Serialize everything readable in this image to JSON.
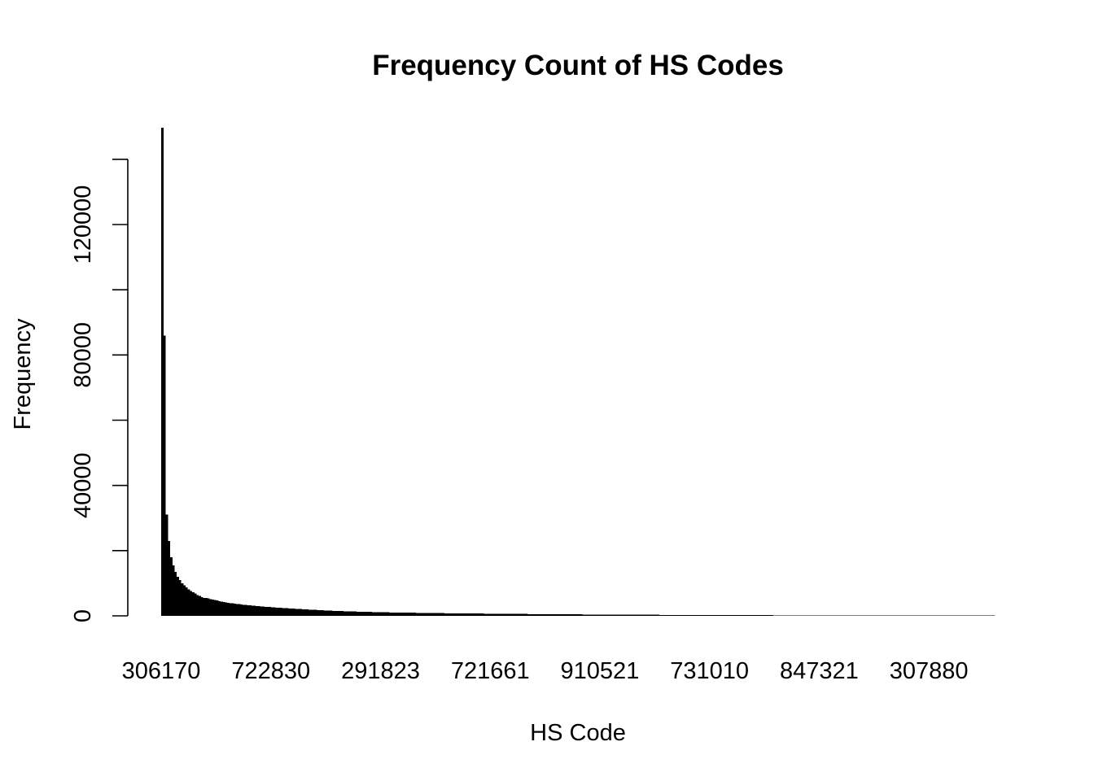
{
  "chart_data": {
    "type": "bar",
    "title": "Frequency Count of HS Codes",
    "xlabel": "HS Code",
    "ylabel": "Frequency",
    "ylim": [
      0,
      140000
    ],
    "y_ticks": [
      0,
      40000,
      80000,
      120000
    ],
    "y_minor_ticks": [
      20000,
      60000,
      100000,
      140000
    ],
    "x_tick_labels": [
      "306170",
      "722830",
      "291823",
      "721661",
      "910521",
      "731010",
      "847321",
      "307880"
    ],
    "x_tick_every": 50,
    "sort_order": "descending",
    "approx_category_count": 380,
    "grid": false,
    "bar_color": "#000000",
    "leading_values": [
      150000,
      86000,
      31000,
      23000,
      18000,
      15500,
      13500,
      12000,
      11000,
      10000,
      9300,
      8700,
      8100,
      7600,
      7200,
      6800,
      6400,
      6100,
      5800,
      5500
    ],
    "tail_anchors": [
      {
        "rank": 20,
        "value": 5500
      },
      {
        "rank": 30,
        "value": 4000
      },
      {
        "rank": 40,
        "value": 3200
      },
      {
        "rank": 60,
        "value": 2200
      },
      {
        "rank": 80,
        "value": 1500
      },
      {
        "rank": 100,
        "value": 1100
      },
      {
        "rank": 130,
        "value": 800
      },
      {
        "rank": 160,
        "value": 600
      },
      {
        "rank": 200,
        "value": 400
      },
      {
        "rank": 250,
        "value": 250
      },
      {
        "rank": 300,
        "value": 150
      },
      {
        "rank": 379,
        "value": 60
      }
    ]
  }
}
